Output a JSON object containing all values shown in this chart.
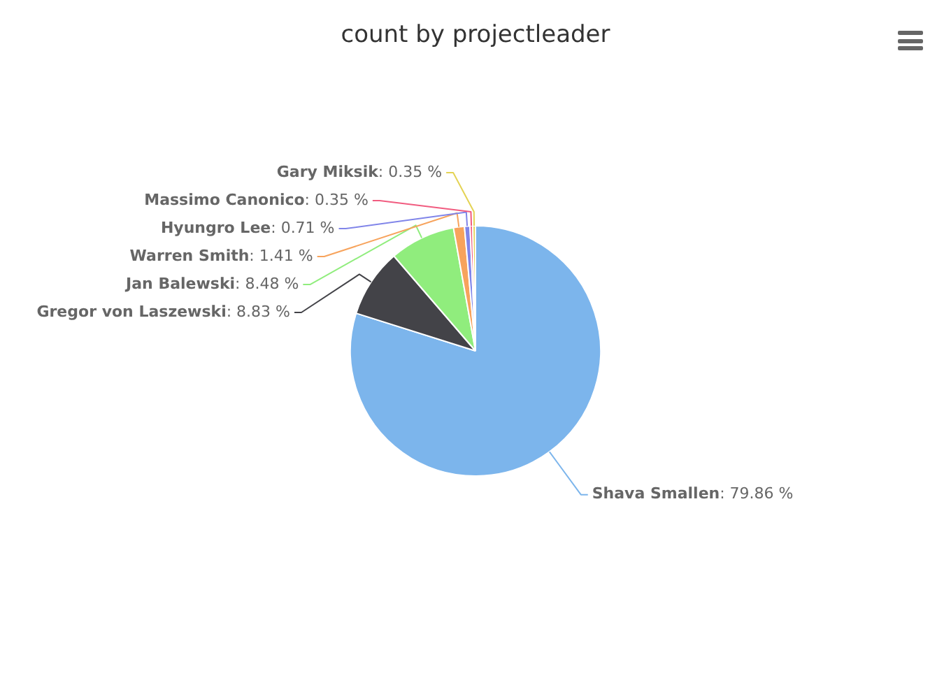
{
  "chart_data": {
    "type": "pie",
    "title": "count by projectleader",
    "categories": [
      "Shava Smallen",
      "Gregor von Laszewski",
      "Jan Balewski",
      "Warren Smith",
      "Hyungro Lee",
      "Massimo Canonico",
      "Gary Miksik"
    ],
    "values": [
      79.86,
      8.83,
      8.48,
      1.41,
      0.71,
      0.35,
      0.35
    ],
    "colors": [
      "#7cb5ec",
      "#434348",
      "#90ed7d",
      "#f7a35c",
      "#8085e9",
      "#f15c80",
      "#e4d354"
    ],
    "value_labels": [
      ": 79.86 %",
      ": 8.83 %",
      ": 8.48 %",
      ": 1.41 %",
      ": 0.71 %",
      ": 0.35 %",
      ": 0.35 %"
    ]
  }
}
